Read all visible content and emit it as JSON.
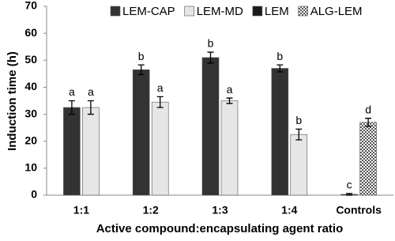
{
  "chart_data": {
    "type": "bar",
    "x_label": "Active compound:encapsulating agent ratio",
    "y_label": "Induction time (h)",
    "categories": [
      "1:1",
      "1:2",
      "1:3",
      "1:4",
      "Controls"
    ],
    "series": [
      {
        "name": "LEM-CAP",
        "color": "#333333",
        "values": [
          32.5,
          46.5,
          51,
          47,
          null
        ],
        "errors": [
          2.5,
          1.8,
          2,
          1.3,
          null
        ],
        "letters": [
          "a",
          "b",
          "b",
          "b",
          null
        ]
      },
      {
        "name": "LEM-MD",
        "color": "#e6e6e6",
        "values": [
          32.5,
          34.5,
          35,
          22.5,
          null
        ],
        "errors": [
          2.5,
          2,
          1,
          2,
          null
        ],
        "letters": [
          "a",
          "a",
          "a",
          "b",
          null
        ]
      },
      {
        "name": "LEM",
        "color": "#1a1a1a",
        "values": [
          null,
          null,
          null,
          null,
          0.3
        ],
        "errors": [
          null,
          null,
          null,
          null,
          0.3
        ],
        "letters": [
          null,
          null,
          null,
          null,
          "c"
        ]
      },
      {
        "name": "ALG-LEM",
        "color": "#bbbbbb",
        "pattern": "checkered",
        "values": [
          null,
          null,
          null,
          null,
          27
        ],
        "errors": [
          null,
          null,
          null,
          null,
          1.5
        ],
        "letters": [
          null,
          null,
          null,
          null,
          "d"
        ]
      }
    ],
    "ylim": [
      0,
      70
    ],
    "yticks": [
      0,
      10,
      20,
      30,
      40,
      50,
      60,
      70
    ],
    "grid": false,
    "legend": "top"
  }
}
